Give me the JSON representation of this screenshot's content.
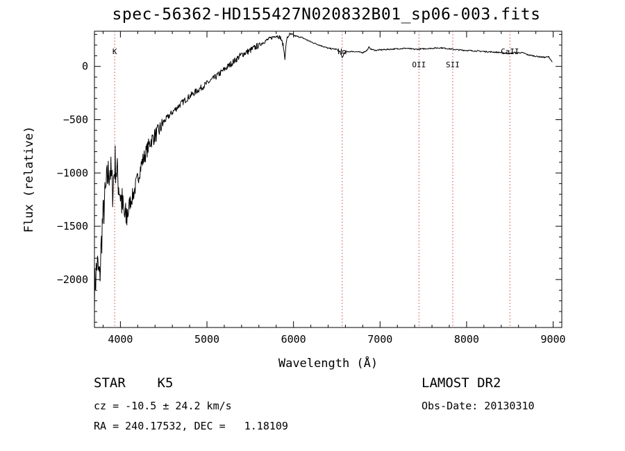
{
  "header": {
    "title": "spec-56362-HD155427N020832B01_sp06-003.fits"
  },
  "info": {
    "class_label": "STAR",
    "subclass": "K5",
    "cz_text": "cz = -10.5 ± 24.2 km/s",
    "radec_text": "RA = 240.17532, DEC =   1.18109",
    "survey": "LAMOST DR2",
    "obs_date_text": "Obs-Date: 20130310"
  },
  "colors": {
    "line": "#000000",
    "marker": "#d04040"
  },
  "chart_data": {
    "type": "line",
    "xlabel": "Wavelength (Å)",
    "ylabel": "Flux (relative)",
    "xlim": [
      3700,
      9100
    ],
    "ylim": [
      -2450,
      330
    ],
    "xticks": [
      4000,
      5000,
      6000,
      7000,
      8000,
      9000
    ],
    "yticks": [
      0,
      -500,
      -1000,
      -1500,
      -2000
    ],
    "grid": false,
    "lines": [
      {
        "label": "K",
        "wavelength": 3934,
        "label_pos": "top"
      },
      {
        "label": "Hα",
        "wavelength": 6563,
        "label_pos": "top"
      },
      {
        "label": "OII",
        "wavelength": 7450,
        "label_pos": "lower"
      },
      {
        "label": "SII",
        "wavelength": 7840,
        "label_pos": "lower"
      },
      {
        "label": "CaII",
        "wavelength": 8500,
        "label_pos": "top"
      }
    ],
    "series": [
      {
        "x": [
          3700,
          3730,
          3760,
          3790,
          3820,
          3850,
          3880,
          3910,
          3940,
          3970,
          4000,
          4030,
          4060,
          4100,
          4150,
          4200,
          4250,
          4300,
          4350,
          4400,
          4450,
          4500,
          4600,
          4700,
          4800,
          4900,
          5000,
          5100,
          5200,
          5300,
          5400,
          5500,
          5600,
          5700,
          5800,
          5850,
          5880,
          5900,
          5920,
          5950,
          6000,
          6100,
          6200,
          6300,
          6400,
          6500,
          6540,
          6563,
          6590,
          6650,
          6700,
          6800,
          6850,
          6870,
          6900,
          6950,
          7000,
          7100,
          7200,
          7300,
          7400,
          7500,
          7600,
          7700,
          7800,
          7900,
          8000,
          8100,
          8200,
          8300,
          8400,
          8498,
          8542,
          8600,
          8662,
          8700,
          8800,
          8900,
          8950,
          8990
        ],
        "y": [
          -2100,
          -1850,
          -2000,
          -1500,
          -1250,
          -1050,
          -950,
          -1150,
          -900,
          -1050,
          -1200,
          -1350,
          -1450,
          -1300,
          -1200,
          -1050,
          -900,
          -800,
          -700,
          -650,
          -600,
          -520,
          -430,
          -350,
          -280,
          -220,
          -160,
          -100,
          -30,
          40,
          110,
          150,
          200,
          250,
          290,
          270,
          200,
          80,
          250,
          300,
          290,
          270,
          230,
          200,
          170,
          160,
          130,
          80,
          130,
          140,
          140,
          130,
          150,
          180,
          160,
          150,
          155,
          160,
          165,
          170,
          160,
          165,
          170,
          175,
          165,
          155,
          150,
          145,
          140,
          135,
          130,
          120,
          130,
          130,
          125,
          110,
          95,
          85,
          90,
          40
        ]
      }
    ]
  }
}
